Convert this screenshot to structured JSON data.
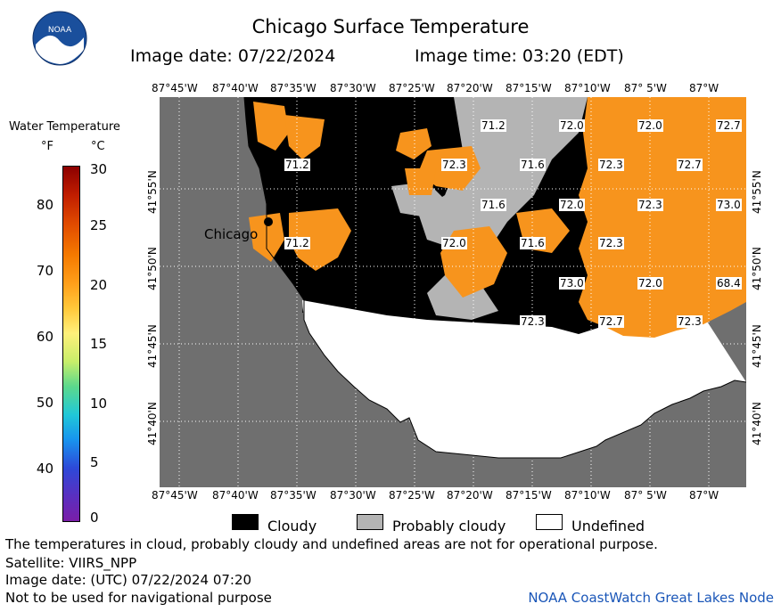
{
  "header": {
    "title": "Chicago Surface Temperature",
    "image_date": "Image date: 07/22/2024",
    "image_time": "Image time: 03:20 (EDT)"
  },
  "logo": {
    "text": "NOAA",
    "icon": "noaa-logo-icon"
  },
  "legend": {
    "title": "Water Temperature",
    "unit_f": "°F",
    "unit_c": "°C",
    "f_ticks": [
      "80",
      "70",
      "60",
      "50",
      "40"
    ],
    "c_ticks": [
      "30",
      "25",
      "20",
      "15",
      "10",
      "5",
      "0"
    ]
  },
  "map": {
    "lon_labels": [
      "87°45'W",
      "87°40'W",
      "87°35'W",
      "87°30'W",
      "87°25'W",
      "87°20'W",
      "87°15'W",
      "87°10'W",
      "87° 5'W",
      "87°W"
    ],
    "lat_labels": [
      "41°55'N",
      "41°50'N",
      "41°45'N",
      "41°40'N"
    ],
    "city_label": "Chicago",
    "temperature_labels": [
      "71.2",
      "72.0",
      "72.0",
      "72.7",
      "71.2",
      "72.3",
      "71.6",
      "72.3",
      "72.7",
      "71.6",
      "72.0",
      "72.3",
      "73.0",
      "71.2",
      "72.0",
      "71.6",
      "72.3",
      "73.0",
      "72.0",
      "68.4",
      "72.3",
      "72.7",
      "72.3"
    ],
    "colors": {
      "land": "#6f6f6f",
      "cloudy": "#000000",
      "probably_cloudy": "#b4b4b4",
      "undefined": "#ffffff",
      "water_warm": "#f7941d"
    }
  },
  "key": {
    "cloudy": "Cloudy",
    "probably_cloudy": "Probably cloudy",
    "undefined": "Undefined"
  },
  "footer": {
    "note": "The temperatures in cloud, probably cloudy and undefined areas are not for operational purpose.",
    "satellite": "Satellite: VIIRS_NPP",
    "utc_date": "Image date: (UTC) 07/22/2024  07:20",
    "navigation": "Not to be used for navigational purpose",
    "credit": "NOAA CoastWatch Great Lakes Node"
  }
}
